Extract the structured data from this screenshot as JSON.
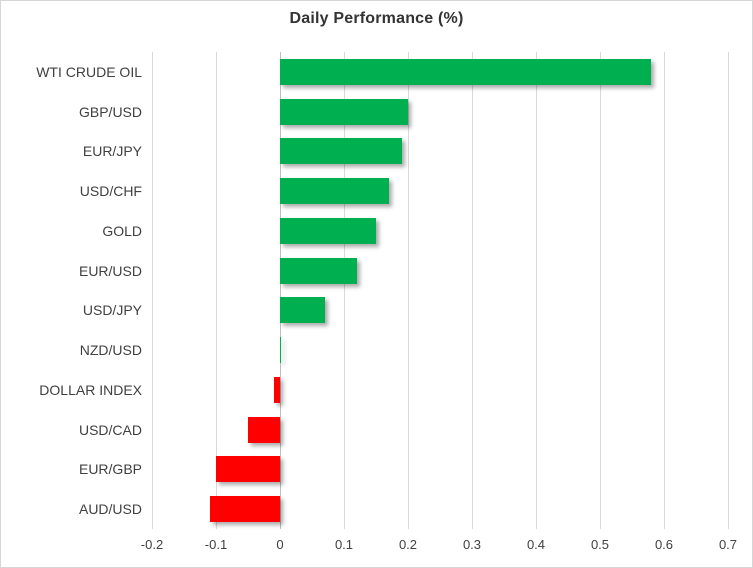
{
  "chart": {
    "title": "Daily Performance (%)"
  },
  "chart_data": {
    "type": "bar",
    "orientation": "horizontal",
    "title": "Daily Performance (%)",
    "categories": [
      "WTI CRUDE OIL",
      "GBP/USD",
      "EUR/JPY",
      "USD/CHF",
      "GOLD",
      "EUR/USD",
      "USD/JPY",
      "NZD/USD",
      "DOLLAR INDEX",
      "USD/CAD",
      "EUR/GBP",
      "AUD/USD"
    ],
    "values": [
      0.58,
      0.2,
      0.19,
      0.17,
      0.15,
      0.12,
      0.07,
      0.0,
      -0.01,
      -0.05,
      -0.1,
      -0.11
    ],
    "xlabel": "",
    "ylabel": "",
    "xlim": [
      -0.2,
      0.7
    ],
    "xticks": [
      -0.2,
      -0.1,
      0,
      0.1,
      0.2,
      0.3,
      0.4,
      0.5,
      0.6,
      0.7
    ],
    "xtick_labels": [
      "-0.2",
      "-0.1",
      "0",
      "0.1",
      "0.2",
      "0.3",
      "0.4",
      "0.5",
      "0.6",
      "0.7"
    ],
    "grid": true,
    "legend": false,
    "colors": {
      "positive": "#00B050",
      "negative": "#FF0000",
      "gridline": "#D9D9D9",
      "zero_line": "#BFBFBF",
      "text": "#404040",
      "title": "#333333"
    }
  }
}
